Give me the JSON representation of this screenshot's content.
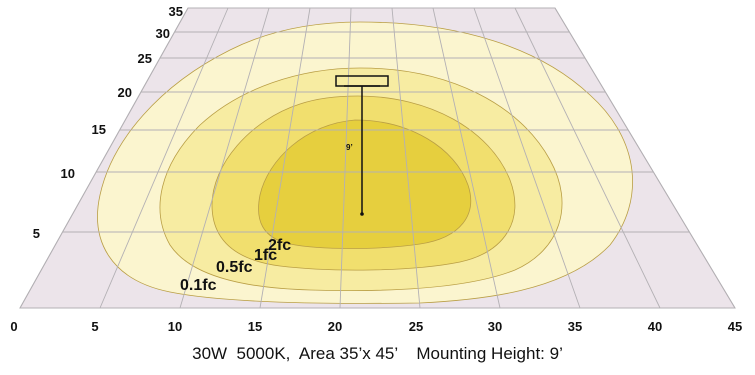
{
  "caption": "30W  5000K,  Area 35’x 45’    Mounting Height: 9’",
  "fixture": {
    "mounting_height_label": "9’"
  },
  "x_axis": {
    "ticks": [
      "0",
      "5",
      "10",
      "15",
      "20",
      "25",
      "30",
      "35",
      "40",
      "45"
    ]
  },
  "y_axis": {
    "ticks": [
      "5",
      "10",
      "15",
      "20",
      "25",
      "30",
      "35"
    ]
  },
  "contours": [
    {
      "label": "0.1fc",
      "color": "#fbf5cf"
    },
    {
      "label": "0.5fc",
      "color": "#f7eca2"
    },
    {
      "label": "1fc",
      "color": "#f1df6e"
    },
    {
      "label": "2fc",
      "color": "#e6cf3e"
    }
  ],
  "colors": {
    "grid_floor": "#ece4ea",
    "grid_line": "#b3b0b4",
    "text": "#111111"
  }
}
